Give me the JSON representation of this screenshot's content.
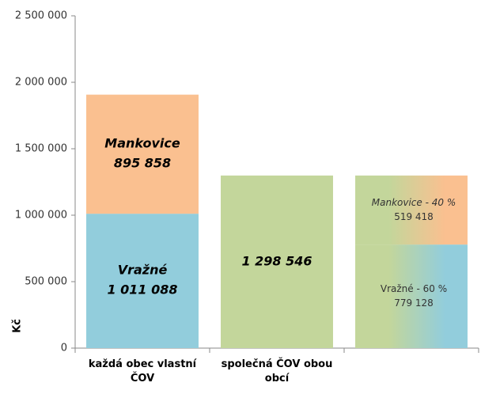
{
  "chart_data": {
    "type": "stacked-bar",
    "categories": [
      "každá obec vlastní ČOV",
      "společná ČOV obou obcí",
      null
    ],
    "series": [
      {
        "name": "Vražné",
        "color": "#92cddc",
        "values": [
          1011088,
          null,
          779128
        ],
        "value_labels": [
          "1 011 088",
          null,
          "779 128"
        ],
        "share_label": "Vražné - 60 %"
      },
      {
        "name": "Mankovice",
        "color": "#fac090",
        "values": [
          895858,
          null,
          519418
        ],
        "value_labels": [
          "895 858",
          null,
          "519 418"
        ],
        "share_label": "Mankovice - 40 %"
      },
      {
        "color": "#c3d69b",
        "values": [
          null,
          1298546,
          null
        ],
        "value_labels": [
          null,
          "1 298 546",
          null
        ]
      }
    ],
    "ylabel": "Kč",
    "ylim": [
      0,
      2500000
    ],
    "yticks": [
      {
        "value": 0,
        "label": "0"
      },
      {
        "value": 500000,
        "label": "500 000"
      },
      {
        "value": 1000000,
        "label": "1 000 000"
      },
      {
        "value": 1500000,
        "label": "1 500 000"
      },
      {
        "value": 2000000,
        "label": "2 000 000"
      },
      {
        "value": 2500000,
        "label": "2 500 000"
      }
    ],
    "grid": false
  }
}
